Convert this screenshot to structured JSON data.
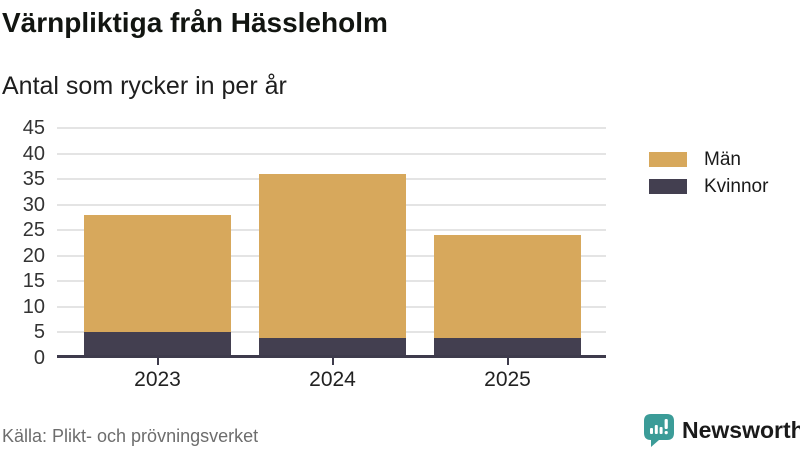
{
  "header": {
    "title": "Värnpliktiga från Hässleholm",
    "subtitle": "Antal som rycker in per år"
  },
  "chart_data": {
    "type": "bar",
    "stacked": true,
    "title": "Värnpliktiga från Hässleholm",
    "subtitle": "Antal som rycker in per år",
    "categories": [
      "2023",
      "2024",
      "2025"
    ],
    "series": [
      {
        "name": "Män",
        "color": "#d7a85c",
        "values": [
          23,
          32,
          20
        ]
      },
      {
        "name": "Kvinnor",
        "color": "#433f50",
        "values": [
          5,
          4,
          4
        ]
      }
    ],
    "stack_order_bottom_to_top": [
      "Kvinnor",
      "Män"
    ],
    "totals": [
      28,
      36,
      24
    ],
    "xlabel": "",
    "ylabel": "",
    "ylim": [
      0,
      45
    ],
    "yticks": [
      0,
      5,
      10,
      15,
      20,
      25,
      30,
      35,
      40,
      45
    ],
    "grid": "horizontal",
    "legend_position": "right"
  },
  "footer": {
    "source": "Källa: Plikt- och prövningsverket",
    "brand": "Newsworthy",
    "logo_icon": "newsworthy-speech-bubble-bar-chart-icon"
  },
  "colors": {
    "men": "#d7a85c",
    "women": "#433f50",
    "brand_teal": "#3b9c98",
    "gridline": "#e4e4e4",
    "axis": "#3e3b4c",
    "source_text": "#6d6d6d"
  }
}
